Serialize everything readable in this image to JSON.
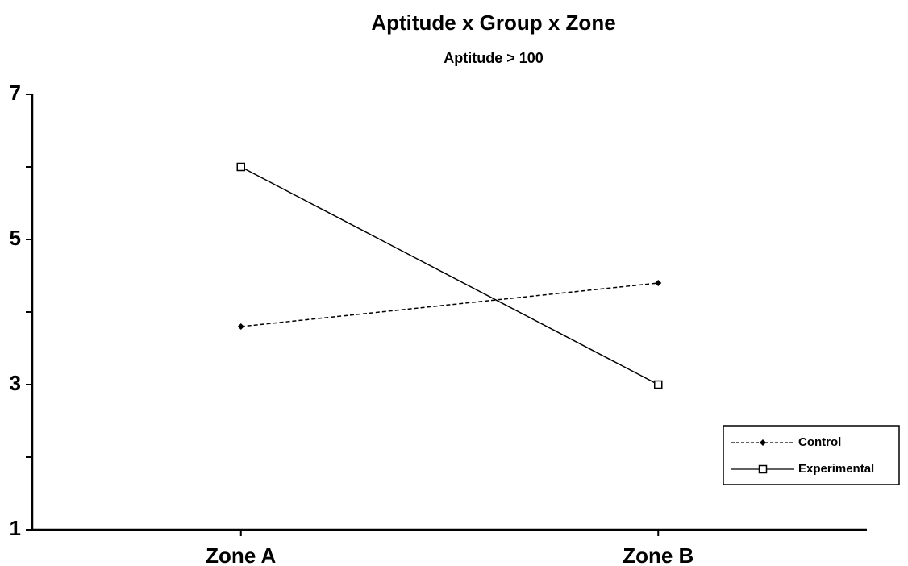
{
  "chart_data": {
    "type": "line",
    "title": "Aptitude x Group x Zone",
    "subtitle": "Aptitude > 100",
    "categories": [
      "Zone A",
      "Zone B"
    ],
    "series": [
      {
        "name": "Control",
        "color": "#000000",
        "linestyle": "dashed",
        "marker": "diamond",
        "values": [
          3.8,
          4.4
        ]
      },
      {
        "name": "Experimental",
        "color": "#000000",
        "linestyle": "solid",
        "marker": "square",
        "values": [
          6.0,
          3.0
        ]
      }
    ],
    "ylim": [
      1,
      7
    ],
    "yticks": [
      1,
      3,
      5,
      7
    ],
    "yminorticks": [
      2,
      4,
      6
    ],
    "grid": false,
    "legend": "lower right"
  }
}
